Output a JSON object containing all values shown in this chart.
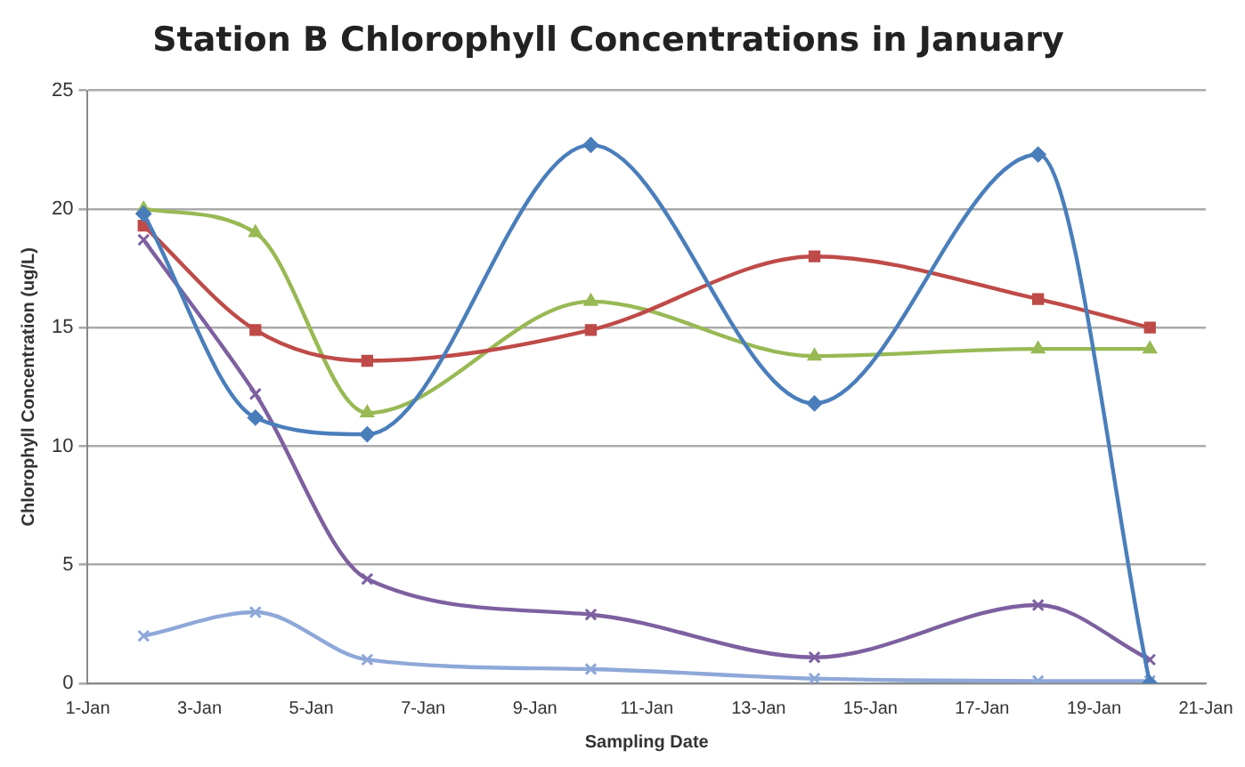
{
  "chart_data": {
    "type": "line",
    "title": "Station B Chlorophyll Concentrations in January",
    "xlabel": "Sampling Date",
    "ylabel": "Chlorophyll Concentration (ug/L)",
    "x": [
      "--01-02",
      "--01-04",
      "--01-06",
      "--01-10",
      "--01-14",
      "--01-18",
      "--01-20"
    ],
    "series": [
      {
        "color": "#4a7ebb",
        "marker": "diamond",
        "values": [
          19.8,
          11.2,
          10.5,
          22.7,
          11.8,
          22.3,
          0
        ]
      },
      {
        "color": "#be4b48",
        "marker": "square",
        "values": [
          19.3,
          14.9,
          13.6,
          14.9,
          18.0,
          16.2,
          15.0
        ]
      },
      {
        "color": "#98b954",
        "marker": "triangle",
        "values": [
          20.0,
          19.0,
          11.4,
          16.1,
          13.8,
          14.1,
          14.1
        ]
      },
      {
        "color": "#7d60a0",
        "marker": "cross",
        "values": [
          18.7,
          12.2,
          4.4,
          2.9,
          1.1,
          3.3,
          1.0
        ]
      },
      {
        "color": "#8ea8d8",
        "marker": "cross",
        "values": [
          2.0,
          3.0,
          1.0,
          0.6,
          0.2,
          0.1,
          0.1
        ]
      }
    ],
    "xlim": [
      "--01-01",
      "--01-21"
    ],
    "xticks": [
      {
        "value": "--01-01",
        "label": "1-Jan"
      },
      {
        "value": "--01-03",
        "label": "3-Jan"
      },
      {
        "value": "--01-05",
        "label": "5-Jan"
      },
      {
        "value": "--01-07",
        "label": "7-Jan"
      },
      {
        "value": "--01-09",
        "label": "9-Jan"
      },
      {
        "value": "--01-11",
        "label": "11-Jan"
      },
      {
        "value": "--01-13",
        "label": "13-Jan"
      },
      {
        "value": "--01-15",
        "label": "15-Jan"
      },
      {
        "value": "--01-17",
        "label": "17-Jan"
      },
      {
        "value": "--01-19",
        "label": "19-Jan"
      },
      {
        "value": "--01-21",
        "label": "21-Jan"
      }
    ],
    "ylim": [
      0,
      25
    ],
    "yticks": [
      0,
      5,
      10,
      15,
      20,
      25
    ],
    "grid": "y",
    "legend": false
  }
}
